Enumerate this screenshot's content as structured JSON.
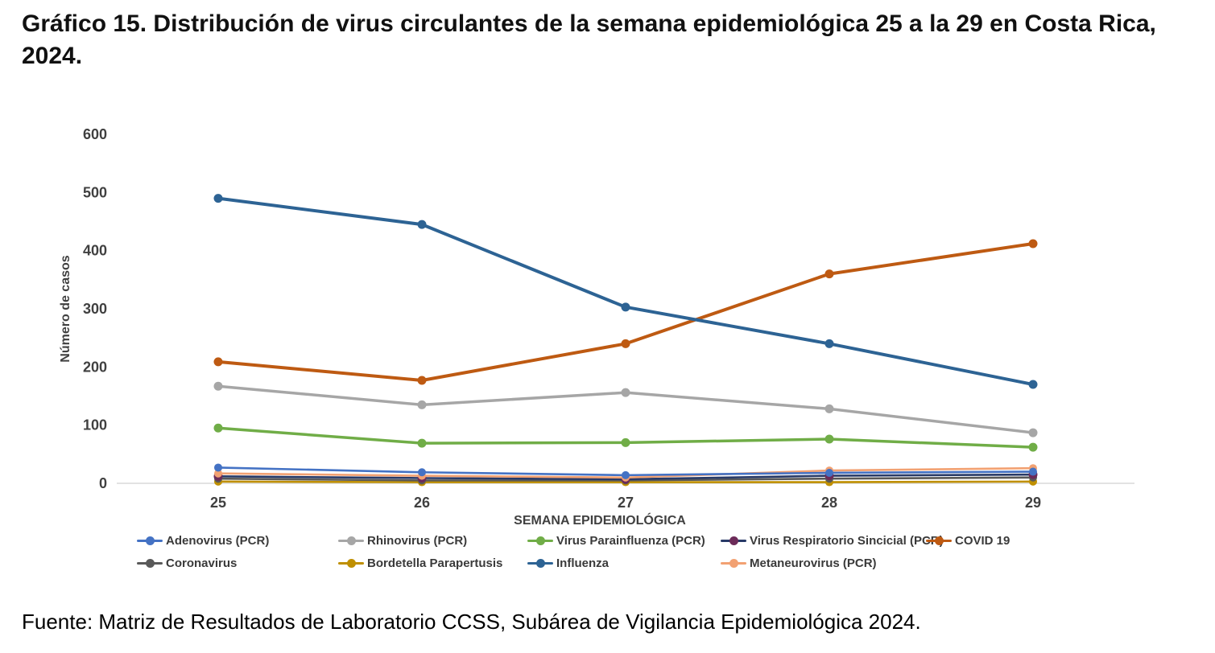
{
  "page": {
    "title": "Gráfico 15. Distribución de virus circulantes de la semana epidemiológica 25 a la 29 en Costa Rica, 2024.",
    "source": "Fuente: Matriz de Resultados de Laboratorio CCSS, Subárea de Vigilancia Epidemiológica 2024."
  },
  "chart_data": {
    "type": "line",
    "title": "",
    "xlabel": "SEMANA EPIDEMIOLÓGICA",
    "ylabel": "Número de casos",
    "categories": [
      "25",
      "26",
      "27",
      "28",
      "29"
    ],
    "ylim": [
      0,
      600
    ],
    "ytick_step": 100,
    "yticks": [
      "0",
      "100",
      "200",
      "300",
      "400",
      "500",
      "600"
    ],
    "grid": "baseline-only",
    "legend_position": "bottom",
    "axis_text_color": "#404040",
    "baseline_color": "#d9d9d9",
    "series": [
      {
        "name": "Adenovirus (PCR)",
        "color": "#4472C4",
        "marker_color": "#4472C4",
        "values": [
          27,
          19,
          14,
          18,
          20
        ]
      },
      {
        "name": "Rhinovirus (PCR)",
        "color": "#A6A6A6",
        "marker_color": "#A6A6A6",
        "values": [
          167,
          135,
          156,
          128,
          87
        ]
      },
      {
        "name": "Virus Parainfluenza (PCR)",
        "color": "#70AD47",
        "marker_color": "#70AD47",
        "values": [
          95,
          69,
          70,
          76,
          62
        ]
      },
      {
        "name": "Virus Respiratorio Sincicial (PCR)",
        "color": "#283A67",
        "marker_color": "#6C2B59",
        "values": [
          12,
          9,
          7,
          13,
          15
        ]
      },
      {
        "name": "COVID 19",
        "color": "#BE5A12",
        "marker_color": "#BE5A12",
        "values": [
          209,
          177,
          240,
          360,
          412
        ]
      },
      {
        "name": "Coronavirus",
        "color": "#595959",
        "marker_color": "#595959",
        "values": [
          8,
          5,
          5,
          8,
          10
        ]
      },
      {
        "name": "Bordetella Parapertusis",
        "color": "#BF8F00",
        "marker_color": "#BF8F00",
        "values": [
          3,
          2,
          2,
          2,
          3
        ]
      },
      {
        "name": "Influenza",
        "color": "#2D6394",
        "marker_color": "#2D6394",
        "values": [
          490,
          445,
          303,
          240,
          170
        ]
      },
      {
        "name": "Metaneurovirus (PCR)",
        "color": "#F2A172",
        "marker_color": "#F2A172",
        "values": [
          17,
          13,
          10,
          22,
          26
        ]
      }
    ],
    "legend_rows": [
      [
        0,
        1,
        2,
        3,
        4
      ],
      [
        5,
        6,
        7,
        8
      ]
    ]
  }
}
